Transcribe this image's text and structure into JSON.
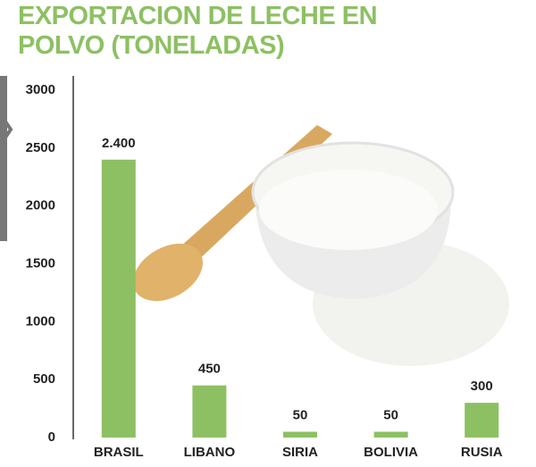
{
  "chart_data": {
    "type": "bar",
    "title": "EXPORTACION DE LECHE EN POLVO (TONELADAS)",
    "categories": [
      "BRASIL",
      "LIBANO",
      "SIRIA",
      "BOLIVIA",
      "RUSIA"
    ],
    "values": [
      2400,
      450,
      50,
      50,
      300
    ],
    "value_labels": [
      "2.400",
      "450",
      "50",
      "50",
      "300"
    ],
    "color": "#8dc063",
    "ylim": [
      0,
      3000
    ],
    "yticks": [
      0,
      500,
      1000,
      1500,
      2000,
      2500,
      3000
    ],
    "grid": false
  }
}
